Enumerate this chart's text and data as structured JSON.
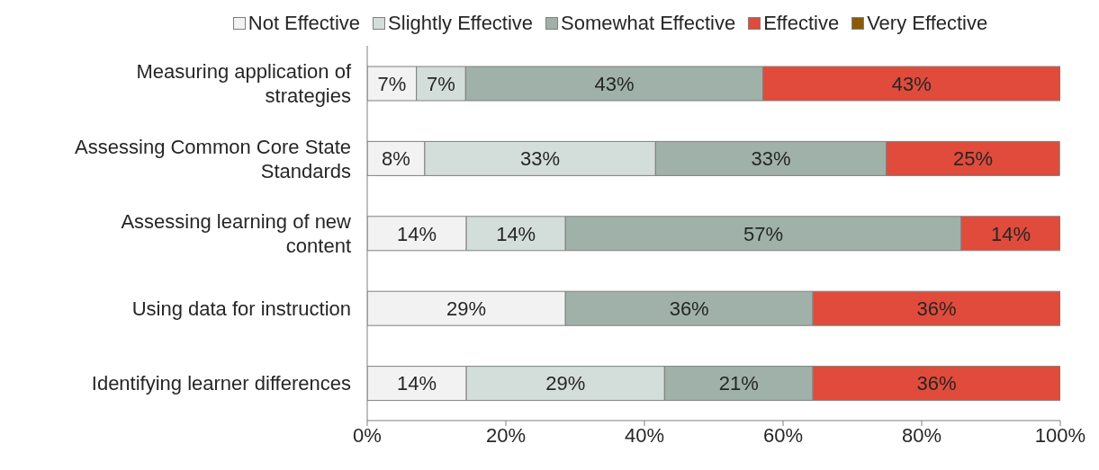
{
  "chart_data": {
    "type": "bar",
    "orientation": "horizontal",
    "stacked": true,
    "categories": [
      "Measuring application of strategies",
      "Assessing Common Core State Standards",
      "Assessing learning of new content",
      "Using data for instruction",
      "Identifying learner differences"
    ],
    "series": [
      {
        "name": "Not Effective",
        "color": "#f2f2f2",
        "values": [
          7.1,
          8.3,
          14.3,
          28.6,
          14.3
        ],
        "value_labels": [
          "7%",
          "8%",
          "14%",
          "29%",
          "14%"
        ]
      },
      {
        "name": "Slightly Effective",
        "color": "#d3ddd9",
        "values": [
          7.1,
          33.3,
          14.3,
          null,
          28.6
        ],
        "value_labels": [
          "7%",
          "33%",
          "14%",
          null,
          "29%"
        ]
      },
      {
        "name": "Somewhat Effective",
        "color": "#9fb1a8",
        "values": [
          42.9,
          33.3,
          57.1,
          35.7,
          21.4
        ],
        "value_labels": [
          "43%",
          "33%",
          "57%",
          "36%",
          "21%"
        ]
      },
      {
        "name": "Effective",
        "color": "#e04b3b",
        "values": [
          42.9,
          25,
          14.3,
          35.7,
          35.7
        ],
        "value_labels": [
          "43%",
          "25%",
          "14%",
          "36%",
          "36%"
        ]
      },
      {
        "name": "Very Effective",
        "color": "#8b5a00",
        "values": [
          null,
          null,
          null,
          null,
          null
        ]
      }
    ],
    "xlim": [
      0,
      100
    ],
    "xticks": [
      {
        "value": 0,
        "label": "0%"
      },
      {
        "value": 20,
        "label": "20%"
      },
      {
        "value": 40,
        "label": "40%"
      },
      {
        "value": 60,
        "label": "60%"
      },
      {
        "value": 80,
        "label": "80%"
      },
      {
        "value": 100,
        "label": "100%"
      }
    ],
    "grid": false,
    "legend": "top"
  }
}
